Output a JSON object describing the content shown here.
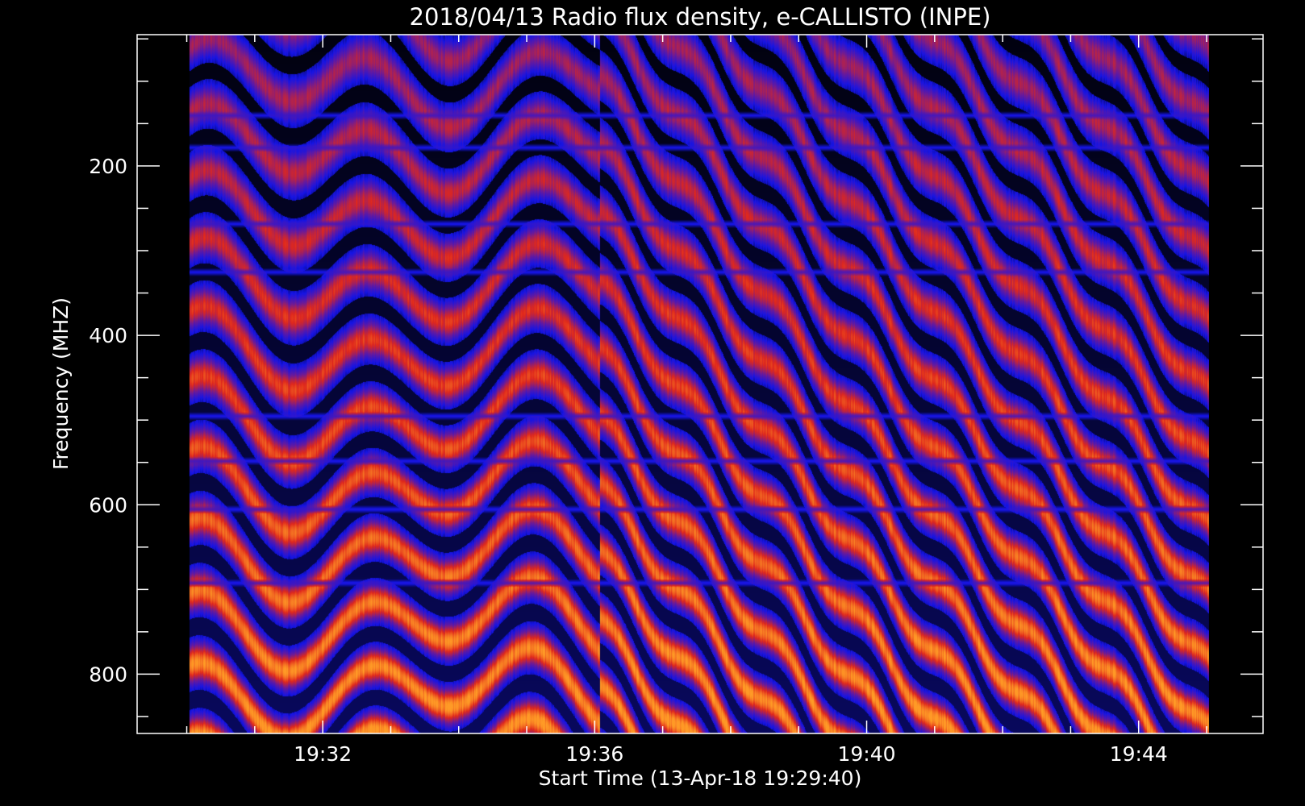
{
  "chart_data": {
    "type": "heatmap",
    "title": "2018/04/13  Radio flux density, e-CALLISTO (INPE)",
    "xlabel": "Start Time (13-Apr-18 19:29:40)",
    "ylabel": "Frequency (MHZ)",
    "x_ticks": [
      "19:32",
      "19:36",
      "19:40",
      "19:44"
    ],
    "x_tick_minutes": [
      2.33,
      6.33,
      10.33,
      14.33
    ],
    "y_ticks": [
      200,
      400,
      600,
      800
    ],
    "xlim_minutes": [
      -0.4,
      16.16
    ],
    "ylim_mhz": [
      870,
      45
    ],
    "data_extent": {
      "x_minutes": [
        0.37,
        15.37
      ],
      "y_mhz": [
        45,
        870
      ]
    },
    "colormap": [
      "#000000",
      "#1414e6",
      "#6a1a9a",
      "#e0281c",
      "#ff9a26"
    ],
    "background": "#000000",
    "axis_color": "#ffffff",
    "grid": false,
    "horizontal_interference_bands_mhz": [
      140,
      178,
      268,
      325,
      495,
      548,
      605,
      692
    ],
    "features": [
      {
        "kind": "drifting-striations",
        "x_minutes": [
          3.4,
          4.6
        ],
        "y_mhz": [
          60,
          870
        ],
        "intensity": "high"
      },
      {
        "kind": "drifting-striations",
        "x_minutes": [
          6.6,
          14.9
        ],
        "y_mhz": [
          60,
          870
        ],
        "intensity": "high"
      }
    ]
  }
}
